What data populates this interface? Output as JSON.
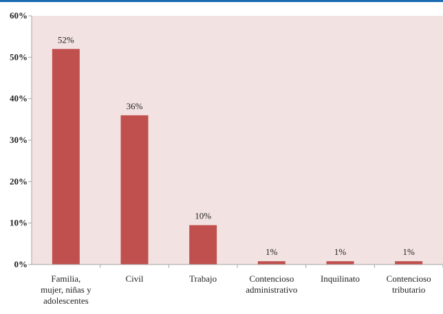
{
  "chart_data": {
    "type": "bar",
    "categories": [
      [
        "Familia,",
        "mujer, niñas y",
        "adolescentes"
      ],
      [
        "Civil"
      ],
      [
        "Trabajo"
      ],
      [
        "Contencioso",
        "administrativo"
      ],
      [
        "Inquilinato"
      ],
      [
        "Contencioso",
        "tributario"
      ]
    ],
    "values": [
      52,
      36,
      9.5,
      0.8,
      0.8,
      0.8
    ],
    "data_labels": [
      "52%",
      "36%",
      "10%",
      "1%",
      "1%",
      "1%"
    ],
    "ylim": [
      0,
      60
    ],
    "yticks": [
      0,
      10,
      20,
      30,
      40,
      50,
      60
    ],
    "ytick_labels": [
      "0%",
      "10%",
      "20%",
      "30%",
      "40%",
      "50%",
      "60%"
    ],
    "title": "",
    "xlabel": "",
    "ylabel": "",
    "grid": false,
    "legend": "none",
    "colors": {
      "bar": "#c0504d",
      "plot_background": "#f3e2e2",
      "top_rule": "#1b6cb3",
      "axis": "#a6a6a6",
      "text": "#222222"
    }
  }
}
